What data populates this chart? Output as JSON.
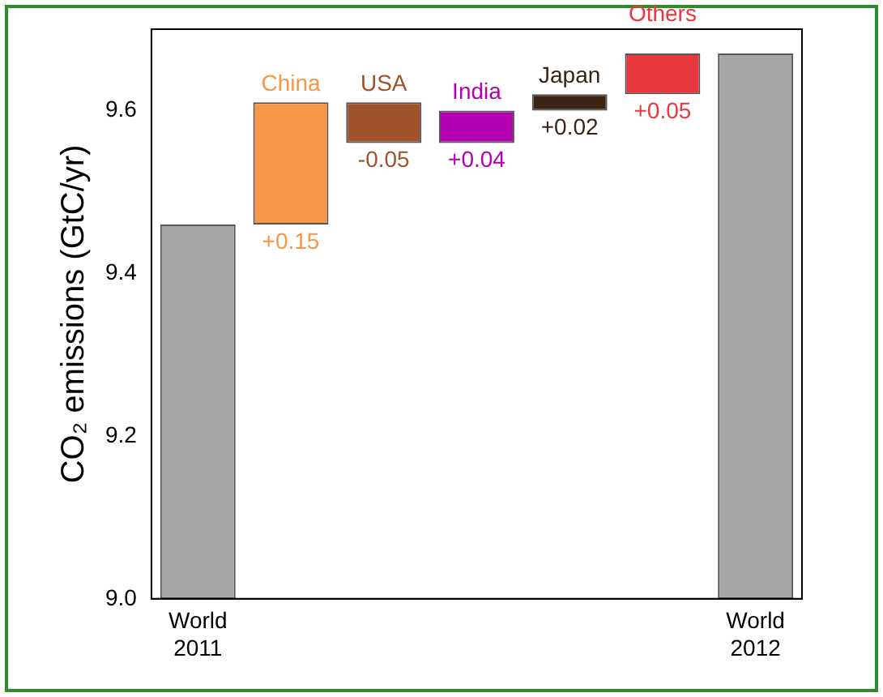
{
  "chart_data": {
    "type": "bar",
    "ylabel": "CO₂ emissions (GtC/yr)",
    "categories": [
      "World 2011",
      "China",
      "USA",
      "India",
      "Japan",
      "Others",
      "World 2012"
    ],
    "values": [
      9.46,
      0.15,
      -0.05,
      0.04,
      0.02,
      0.05,
      9.67
    ],
    "base": [
      null,
      9.46,
      9.61,
      9.56,
      9.6,
      9.62,
      null
    ],
    "colors": [
      "#a6a6a6",
      "#f79646",
      "#a0522d",
      "#b300b3",
      "#3b2314",
      "#e8373d",
      "#a6a6a6"
    ],
    "value_labels": [
      null,
      "+0.15",
      "-0.05",
      "+0.04",
      "+0.02",
      "+0.05",
      null
    ],
    "ylim": [
      9.0,
      9.7
    ],
    "yticks": [
      {
        "value": 9.0,
        "label": "9.0"
      },
      {
        "value": 9.2,
        "label": "9.2"
      },
      {
        "value": 9.4,
        "label": "9.4"
      },
      {
        "value": 9.6,
        "label": "9.6"
      }
    ],
    "grid": false,
    "legend": false
  }
}
